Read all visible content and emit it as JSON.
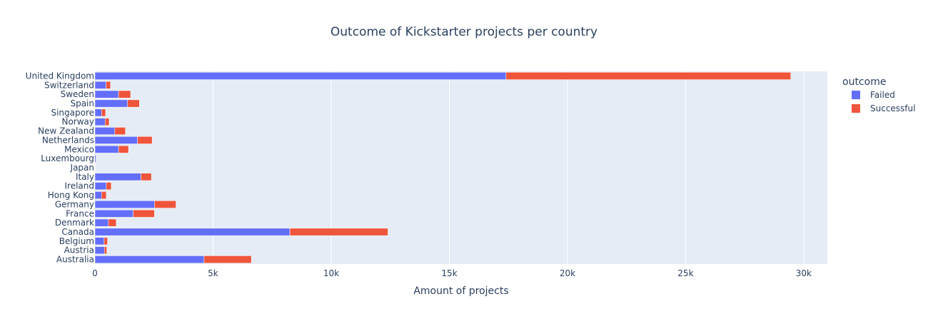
{
  "chart_data": {
    "type": "bar",
    "orientation": "horizontal",
    "barmode": "stack",
    "title": "Outcome of Kickstarter projects per country",
    "xlabel": "Amount of projects",
    "ylabel": "",
    "xlim": [
      0,
      31000
    ],
    "xticks": [
      0,
      5000,
      10000,
      15000,
      20000,
      25000,
      30000
    ],
    "xtick_labels": [
      "0",
      "5k",
      "10k",
      "15k",
      "20k",
      "25k",
      "30k"
    ],
    "grid": true,
    "legend": {
      "title": "outcome",
      "placement": "right"
    },
    "categories": [
      "Australia",
      "Austria",
      "Belgium",
      "Canada",
      "Denmark",
      "France",
      "Germany",
      "Hong Kong",
      "Ireland",
      "Italy",
      "Japan",
      "Luxembourg",
      "Mexico",
      "Netherlands",
      "New Zealand",
      "Norway",
      "Singapore",
      "Spain",
      "Sweden",
      "Switzerland",
      "United Kingdom"
    ],
    "series": [
      {
        "name": "Failed",
        "color": "#636efa",
        "values": [
          4620,
          400,
          390,
          8250,
          570,
          1620,
          2520,
          280,
          480,
          1950,
          10,
          50,
          1000,
          1800,
          840,
          430,
          280,
          1380,
          1000,
          470,
          17400
        ]
      },
      {
        "name": "Successful",
        "color": "#ef553b",
        "values": [
          2000,
          100,
          140,
          4150,
          330,
          900,
          910,
          200,
          210,
          440,
          5,
          10,
          420,
          620,
          450,
          170,
          170,
          500,
          510,
          190,
          12050
        ]
      }
    ]
  },
  "colors": {
    "plot_bg": "#e5ecf6",
    "grid": "#ffffff",
    "text": "#2a3f5f"
  }
}
